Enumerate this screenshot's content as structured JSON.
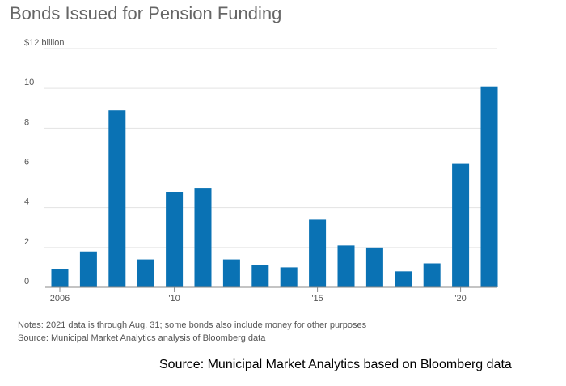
{
  "chart_data": {
    "type": "bar",
    "title": "Bonds Issued for Pension Funding",
    "categories": [
      "2006",
      "2007",
      "2008",
      "2009",
      "2010",
      "2011",
      "2012",
      "2013",
      "2014",
      "2015",
      "2016",
      "2017",
      "2018",
      "2019",
      "2020",
      "2021"
    ],
    "values": [
      0.9,
      1.8,
      8.9,
      1.4,
      4.8,
      5.0,
      1.4,
      1.1,
      1.0,
      3.4,
      2.1,
      2.0,
      0.8,
      1.2,
      6.2,
      10.1
    ],
    "ylim": [
      0,
      12
    ],
    "yticks": [
      {
        "value": 0,
        "label": "0"
      },
      {
        "value": 2,
        "label": "2"
      },
      {
        "value": 4,
        "label": "4"
      },
      {
        "value": 6,
        "label": "6"
      },
      {
        "value": 8,
        "label": "8"
      },
      {
        "value": 10,
        "label": "10"
      },
      {
        "value": 12,
        "label": "$12 billion"
      }
    ],
    "xticks": [
      {
        "category": "2006",
        "label": "2006"
      },
      {
        "category": "2010",
        "label": "'10"
      },
      {
        "category": "2015",
        "label": "'15"
      },
      {
        "category": "2020",
        "label": "'20"
      }
    ],
    "bar_color": "#0a72b4",
    "grid": true,
    "xlabel": "",
    "ylabel": ""
  },
  "notes": {
    "line1": "Notes: 2021 data is through Aug. 31; some bonds also include money for other purposes",
    "line2": "Source: Municipal Market Analytics analysis of Bloomberg data"
  },
  "footer_source": "Source: Municipal Market Analytics based on Bloomberg data"
}
